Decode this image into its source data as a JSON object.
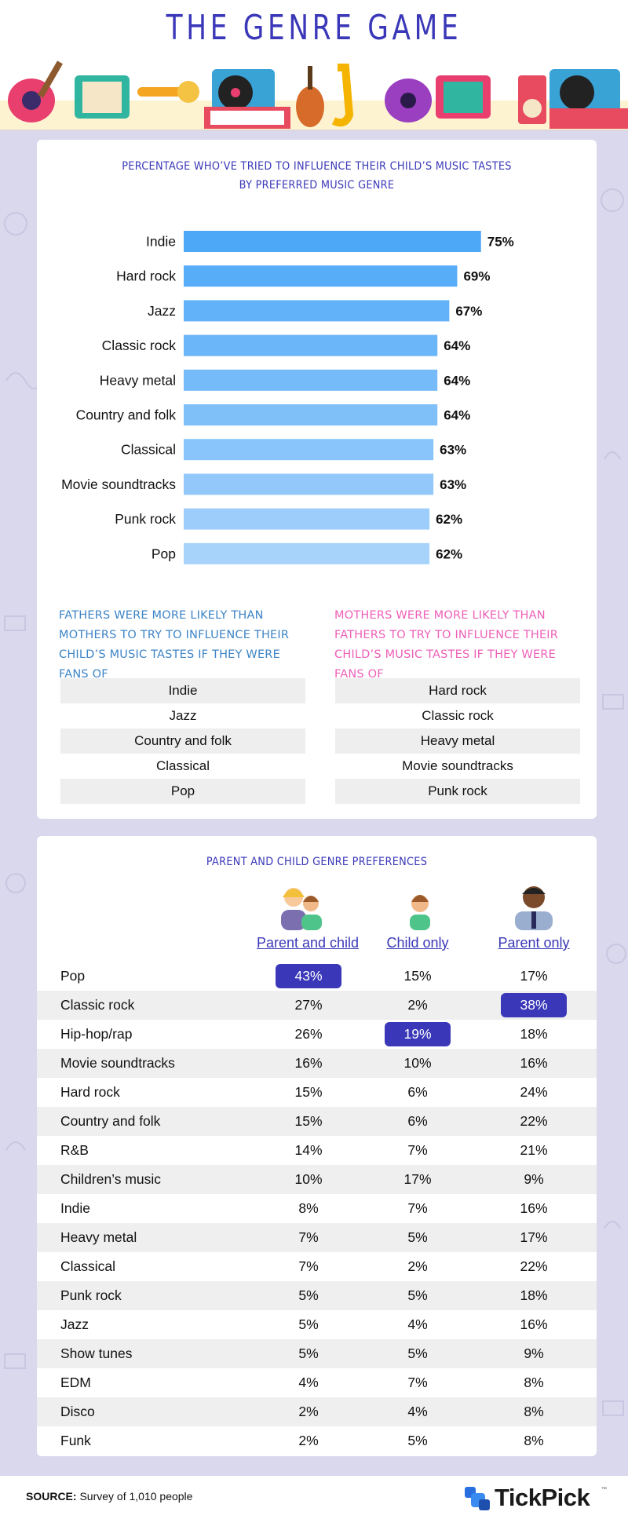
{
  "page_title": "THE GENRE GAME",
  "colors": {
    "brand_purple": "#3a38b8",
    "bar_top": "#4da8f7",
    "bar_bottom": "#a7d3fb",
    "fathers_text": "#3d84c6",
    "mothers_text": "#ee5fb8",
    "highlight": "#3a38b8",
    "background": "#d9d8ec"
  },
  "chart_data": [
    {
      "type": "bar",
      "orientation": "horizontal",
      "title": "PERCENTAGE WHO’VE TRIED TO INFLUENCE THEIR CHILD’S MUSIC TASTES BY PREFERRED MUSIC GENRE",
      "categories": [
        "Indie",
        "Hard rock",
        "Jazz",
        "Classic rock",
        "Heavy metal",
        "Country and folk",
        "Classical",
        "Movie soundtracks",
        "Punk rock",
        "Pop"
      ],
      "values": [
        75,
        69,
        67,
        64,
        64,
        64,
        63,
        63,
        62,
        62
      ],
      "value_labels": [
        "75%",
        "69%",
        "67%",
        "64%",
        "64%",
        "64%",
        "63%",
        "63%",
        "62%",
        "62%"
      ],
      "unit": "%",
      "grid": false
    },
    {
      "type": "table",
      "title": "PARENT AND CHILD GENRE PREFERENCES",
      "columns": [
        "Parent and child",
        "Child only",
        "Parent only"
      ],
      "rows": [
        {
          "genre": "Pop",
          "values": [
            "43%",
            "15%",
            "17%"
          ],
          "highlight": 0
        },
        {
          "genre": "Classic rock",
          "values": [
            "27%",
            "2%",
            "38%"
          ],
          "highlight": 2
        },
        {
          "genre": "Hip-hop/rap",
          "values": [
            "26%",
            "19%",
            "18%"
          ],
          "highlight": 1
        },
        {
          "genre": "Movie soundtracks",
          "values": [
            "16%",
            "10%",
            "16%"
          ],
          "highlight": -1
        },
        {
          "genre": "Hard rock",
          "values": [
            "15%",
            "6%",
            "24%"
          ],
          "highlight": -1
        },
        {
          "genre": "Country and folk",
          "values": [
            "15%",
            "6%",
            "22%"
          ],
          "highlight": -1
        },
        {
          "genre": "R&B",
          "values": [
            "14%",
            "7%",
            "21%"
          ],
          "highlight": -1
        },
        {
          "genre": "Children’s music",
          "values": [
            "10%",
            "17%",
            "9%"
          ],
          "highlight": -1
        },
        {
          "genre": "Indie",
          "values": [
            "8%",
            "7%",
            "16%"
          ],
          "highlight": -1
        },
        {
          "genre": "Heavy metal",
          "values": [
            "7%",
            "5%",
            "17%"
          ],
          "highlight": -1
        },
        {
          "genre": "Classical",
          "values": [
            "7%",
            "2%",
            "22%"
          ],
          "highlight": -1
        },
        {
          "genre": "Punk rock",
          "values": [
            "5%",
            "5%",
            "18%"
          ],
          "highlight": -1
        },
        {
          "genre": "Jazz",
          "values": [
            "5%",
            "4%",
            "16%"
          ],
          "highlight": -1
        },
        {
          "genre": "Show tunes",
          "values": [
            "5%",
            "5%",
            "9%"
          ],
          "highlight": -1
        },
        {
          "genre": "EDM",
          "values": [
            "4%",
            "7%",
            "8%"
          ],
          "highlight": -1
        },
        {
          "genre": "Disco",
          "values": [
            "2%",
            "4%",
            "8%"
          ],
          "highlight": -1
        },
        {
          "genre": "Funk",
          "values": [
            "2%",
            "5%",
            "8%"
          ],
          "highlight": -1
        }
      ]
    }
  ],
  "fathers_note": "FATHERS WERE MORE LIKELY THAN MOTHERS TO TRY TO INFLUENCE THEIR CHILD’S MUSIC TASTES IF THEY WERE FANS OF _________",
  "mothers_note": "MOTHERS WERE MORE LIKELY THAN FATHERS TO TRY TO INFLUENCE THEIR CHILD’S MUSIC TASTES IF THEY WERE FANS OF",
  "fathers_genres": [
    "Indie",
    "Jazz",
    "Country and folk",
    "Classical",
    "Pop"
  ],
  "mothers_genres": [
    "Hard rock",
    "Classic rock",
    "Heavy metal",
    "Movie soundtracks",
    "Punk rock"
  ],
  "footer": {
    "source_label": "SOURCE:",
    "source_text": "Survey of 1,010 people",
    "brand": "TickPick",
    "trademark": "™"
  }
}
